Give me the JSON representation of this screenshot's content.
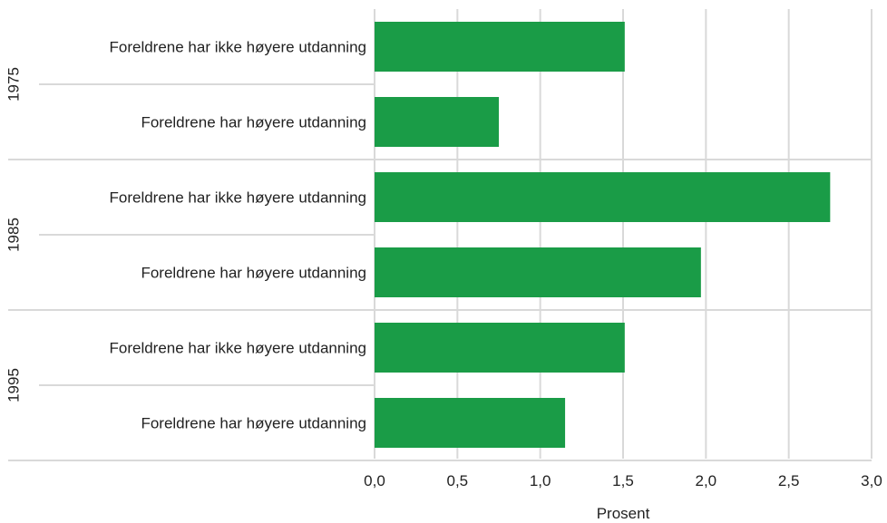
{
  "chart_data": {
    "type": "bar",
    "orientation": "horizontal",
    "xlabel": "Prosent",
    "ylabel": "",
    "xlim": [
      0,
      3.0
    ],
    "x_ticks": [
      {
        "value": 0.0,
        "label": "0,0"
      },
      {
        "value": 0.5,
        "label": "0,5"
      },
      {
        "value": 1.0,
        "label": "1,0"
      },
      {
        "value": 1.5,
        "label": "1,5"
      },
      {
        "value": 2.0,
        "label": "2,0"
      },
      {
        "value": 2.5,
        "label": "2,5"
      },
      {
        "value": 3.0,
        "label": "3,0"
      }
    ],
    "grid": true,
    "bar_color": "#1a9c47",
    "grid_color": "#d9d9d9",
    "groups": [
      {
        "label": "1975",
        "bars": [
          {
            "category": "Foreldrene har ikke høyere utdanning",
            "value": 1.51
          },
          {
            "category": "Foreldrene har høyere utdanning",
            "value": 0.75
          }
        ]
      },
      {
        "label": "1985",
        "bars": [
          {
            "category": "Foreldrene har ikke høyere utdanning",
            "value": 2.75
          },
          {
            "category": "Foreldrene har høyere utdanning",
            "value": 1.97
          }
        ]
      },
      {
        "label": "1995",
        "bars": [
          {
            "category": "Foreldrene har ikke høyere utdanning",
            "value": 1.51
          },
          {
            "category": "Foreldrene har høyere utdanning",
            "value": 1.15
          }
        ]
      }
    ]
  }
}
